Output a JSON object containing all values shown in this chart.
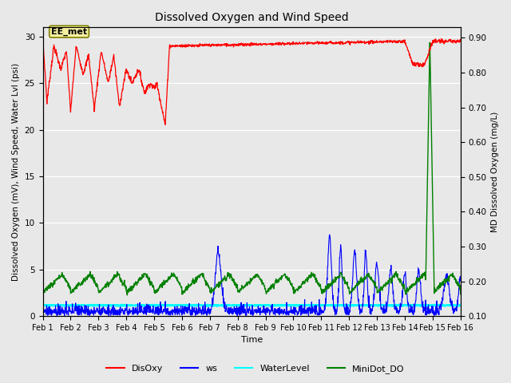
{
  "title": "Dissolved Oxygen and Wind Speed",
  "ylabel_left": "Dissolved Oxygen (mV), Wind Speed, Water Lvl (psi)",
  "ylabel_right": "MD Dissolved Oxygen (mg/L)",
  "xlabel": "Time",
  "ylim_left": [
    0,
    31
  ],
  "ylim_right": [
    0.1,
    0.93
  ],
  "yticks_left": [
    0,
    5,
    10,
    15,
    20,
    25,
    30
  ],
  "yticks_right": [
    0.1,
    0.2,
    0.3,
    0.4,
    0.5,
    0.6,
    0.7,
    0.8,
    0.9
  ],
  "xtick_labels": [
    "Feb 1",
    "Feb 2",
    "Feb 3",
    "Feb 4",
    "Feb 5",
    "Feb 6",
    "Feb 7",
    "Feb 8",
    "Feb 9",
    "Feb 10",
    "Feb 11",
    "Feb 12",
    "Feb 13",
    "Feb 14",
    "Feb 15",
    "Feb 16"
  ],
  "legend_labels": [
    "DisOxy",
    "ws",
    "WaterLevel",
    "MiniDot_DO"
  ],
  "legend_colors": [
    "red",
    "blue",
    "cyan",
    "green"
  ],
  "annotation_text": "EE_met",
  "bg_color": "#e8e8e8",
  "plot_bg": "#e8e8e8",
  "disoxy_color": "red",
  "ws_color": "blue",
  "waterlevel_color": "cyan",
  "minidot_color": "green",
  "n_points": 1500,
  "n_days": 15
}
